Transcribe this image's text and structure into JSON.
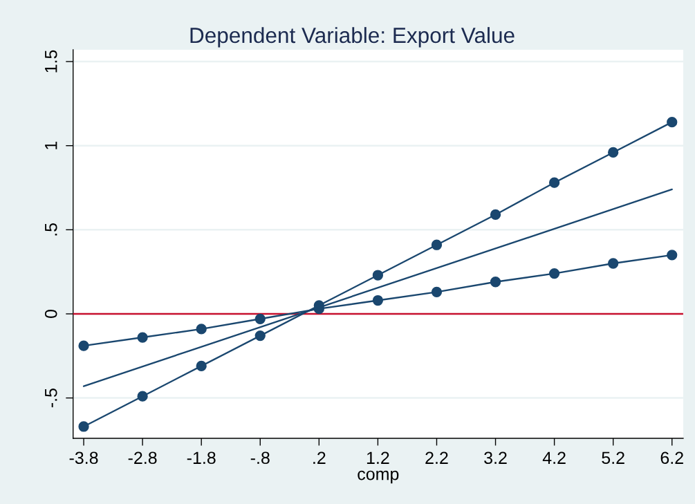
{
  "chart_data": {
    "type": "line",
    "title": "Dependent Variable: Export Value",
    "xlabel": "comp",
    "x": [
      -3.8,
      -2.8,
      -1.8,
      -0.8,
      0.2,
      1.2,
      2.2,
      3.2,
      4.2,
      5.2,
      6.2
    ],
    "series": [
      {
        "color": "#1a476f",
        "marker": "circle",
        "values": [
          -0.67,
          -0.49,
          -0.31,
          -0.13,
          0.05,
          0.23,
          0.41,
          0.59,
          0.78,
          0.96,
          1.14
        ]
      },
      {
        "color": "#1a476f",
        "marker": "circle",
        "values": [
          -0.19,
          -0.14,
          -0.09,
          -0.03,
          0.03,
          0.08,
          0.13,
          0.19,
          0.24,
          0.3,
          0.35
        ]
      },
      {
        "color": "#1a476f",
        "marker": "none",
        "x": [
          -3.8,
          6.2
        ],
        "values": [
          -0.43,
          0.74
        ]
      }
    ],
    "xlim": [
      -3.98,
      6.39
    ],
    "ylim": [
      -0.74,
      1.57
    ],
    "xticks": [
      -3.8,
      -2.8,
      -1.8,
      {
        "value": -0.8,
        "label": "-.8"
      },
      {
        "value": 0.2,
        "label": ".2"
      },
      1.2,
      2.2,
      3.2,
      4.2,
      5.2,
      6.2
    ],
    "yticks": [
      {
        "value": -0.5,
        "label": "-.5"
      },
      0,
      {
        "value": 0.5,
        "label": ".5"
      },
      1,
      1.5
    ],
    "ref_lines": [
      {
        "axis": "y",
        "value": 0,
        "color": "#c8102e"
      }
    ],
    "grid": "y",
    "line_style": "solid"
  }
}
